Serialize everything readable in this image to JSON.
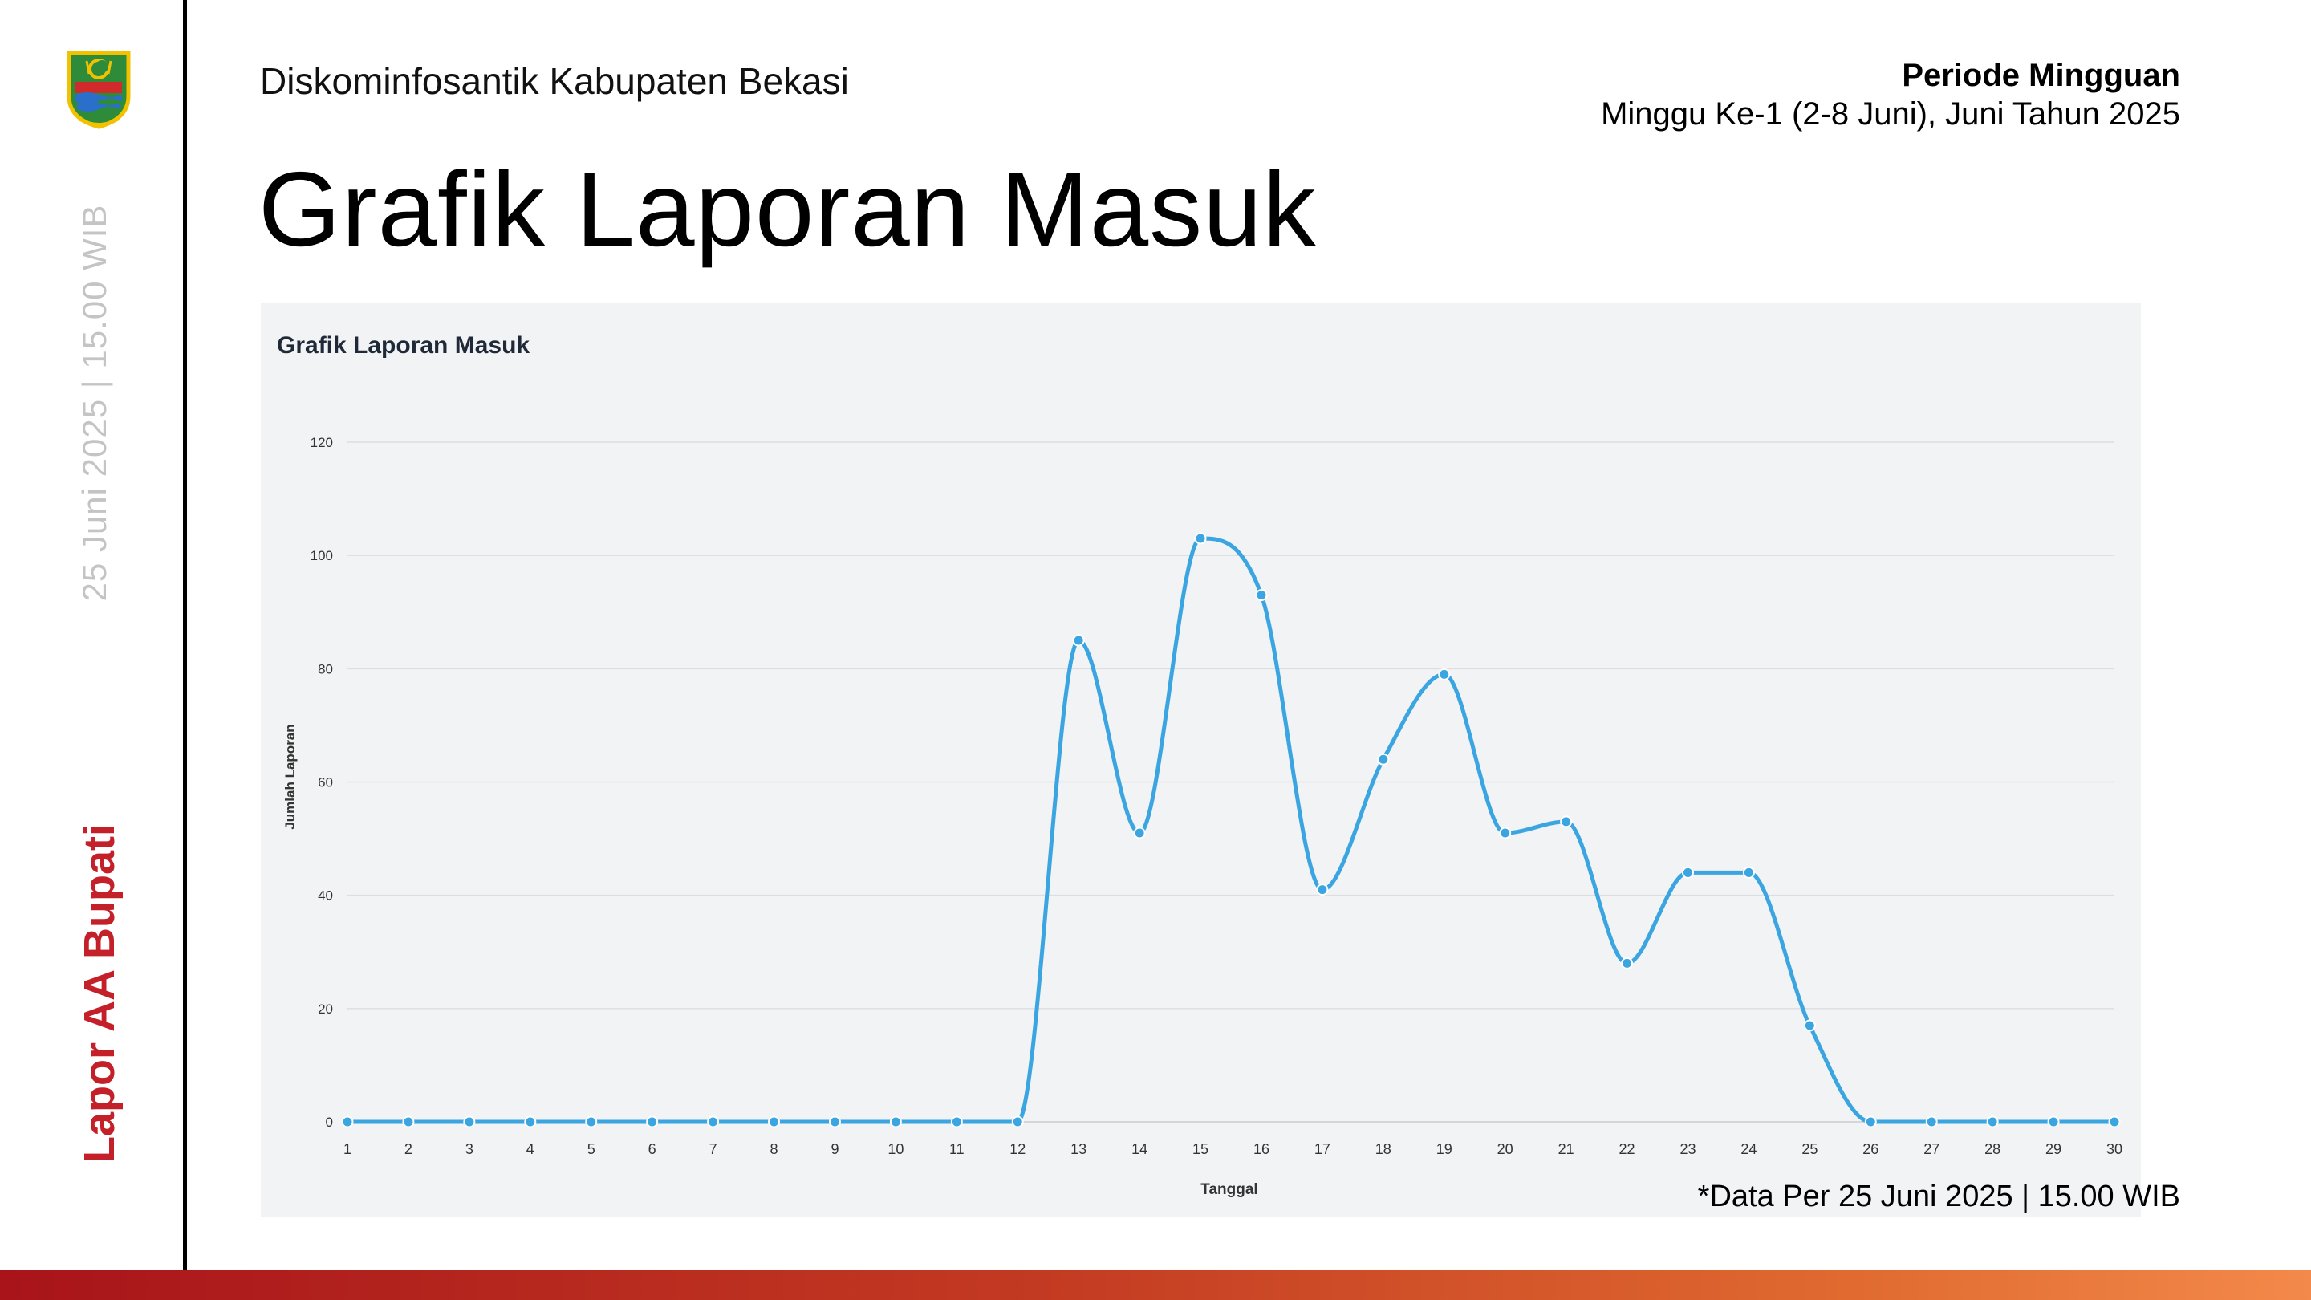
{
  "sidebar": {
    "date_text": "25 Juni 2025 | 15.00 WIB",
    "brand_text": "Lapor AA Bupati"
  },
  "header": {
    "org_name": "Diskominfosantik Kabupaten Bekasi",
    "page_title": "Grafik Laporan Masuk",
    "period_label": "Periode Mingguan",
    "period_value": "Minggu Ke-1 (2-8 Juni), Juni Tahun 2025"
  },
  "footer": {
    "data_note": "*Data Per 25 Juni 2025 | 15.00 WIB"
  },
  "colors": {
    "brand_red": "#c4202a",
    "line": "#3aa5e0",
    "grid": "#dcdee2"
  },
  "chart_data": {
    "type": "line",
    "title": "Grafik Laporan Masuk",
    "xlabel": "Tanggal",
    "ylabel": "Jumlah Laporan",
    "x": [
      1,
      2,
      3,
      4,
      5,
      6,
      7,
      8,
      9,
      10,
      11,
      12,
      13,
      14,
      15,
      16,
      17,
      18,
      19,
      20,
      21,
      22,
      23,
      24,
      25,
      26,
      27,
      28,
      29,
      30
    ],
    "series": [
      {
        "values": [
          0,
          0,
          0,
          0,
          0,
          0,
          0,
          0,
          0,
          0,
          0,
          0,
          85,
          51,
          103,
          93,
          41,
          64,
          79,
          51,
          53,
          28,
          44,
          44,
          17,
          0,
          0,
          0,
          0,
          0
        ]
      }
    ],
    "ylim": [
      0,
      120
    ],
    "yticks": [
      0,
      20,
      40,
      60,
      80,
      100,
      120
    ],
    "grid": true,
    "legend": "none",
    "smooth": true
  }
}
